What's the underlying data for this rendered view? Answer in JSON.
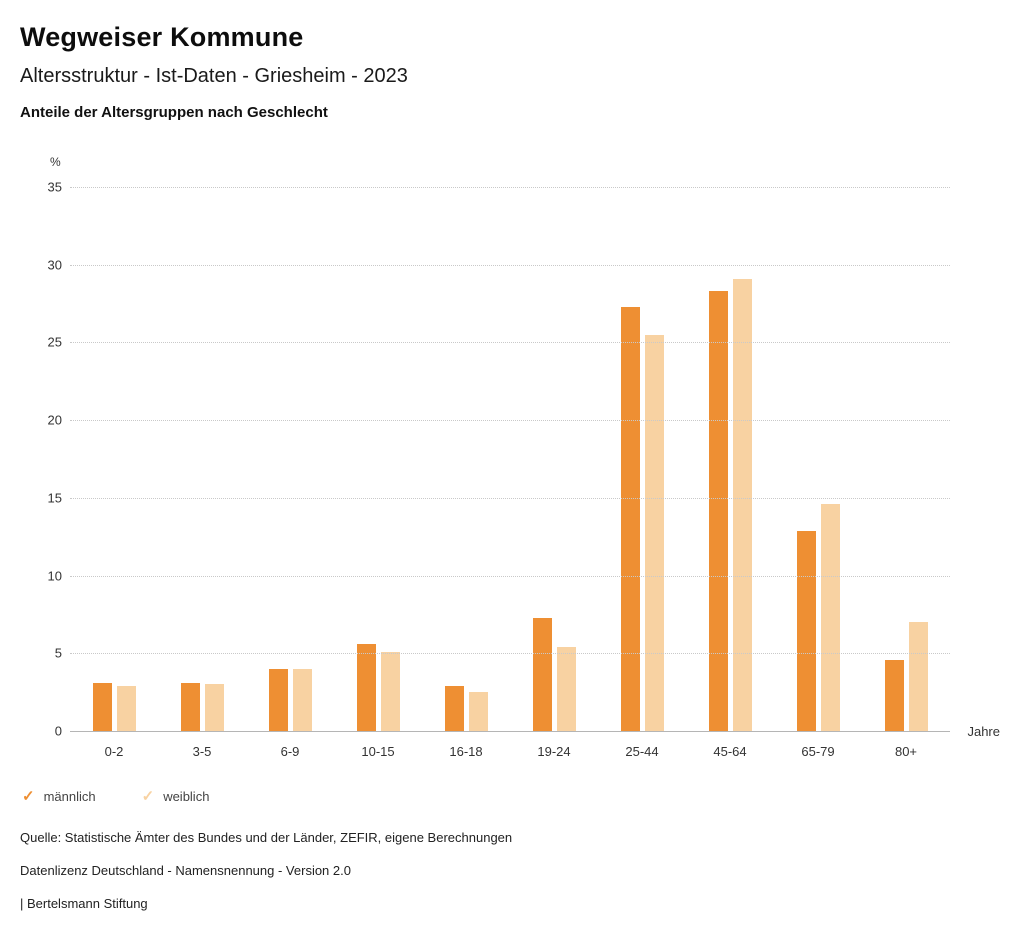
{
  "header": {
    "title": "Wegweiser Kommune",
    "subtitle": "Altersstruktur - Ist-Daten - Griesheim - 2023",
    "section": "Anteile der Altersgruppen nach Geschlecht"
  },
  "chart_data": {
    "type": "bar",
    "title": "Anteile der Altersgruppen nach Geschlecht",
    "categories": [
      "0-2",
      "3-5",
      "6-9",
      "10-15",
      "16-18",
      "19-24",
      "25-44",
      "45-64",
      "65-79",
      "80+"
    ],
    "series": [
      {
        "name": "männlich",
        "color": "#ee8f33",
        "values": [
          3.1,
          3.1,
          4.0,
          5.6,
          2.9,
          7.3,
          27.3,
          28.3,
          12.9,
          4.6
        ]
      },
      {
        "name": "weiblich",
        "color": "#f8d2a2",
        "values": [
          2.9,
          3.0,
          4.0,
          5.1,
          2.5,
          5.4,
          25.5,
          29.1,
          14.6,
          7.0
        ]
      }
    ],
    "y_unit": "%",
    "x_unit": "Jahre",
    "ylim": [
      0,
      35
    ],
    "yticks": [
      0,
      5,
      10,
      15,
      20,
      25,
      30,
      35
    ],
    "grid": "dotted horizontal gridlines",
    "legend_position": "bottom"
  },
  "legend": {
    "items": [
      {
        "label": "männlich",
        "color": "#ee8f33",
        "icon": "check-icon"
      },
      {
        "label": "weiblich",
        "color": "#f8d2a2",
        "icon": "check-icon"
      }
    ]
  },
  "footer": {
    "source": "Quelle: Statistische Ämter des Bundes und der Länder, ZEFIR, eigene Berechnungen",
    "license": "Datenlizenz Deutschland - Namensnennung - Version 2.0",
    "attribution": "| Bertelsmann Stiftung"
  }
}
